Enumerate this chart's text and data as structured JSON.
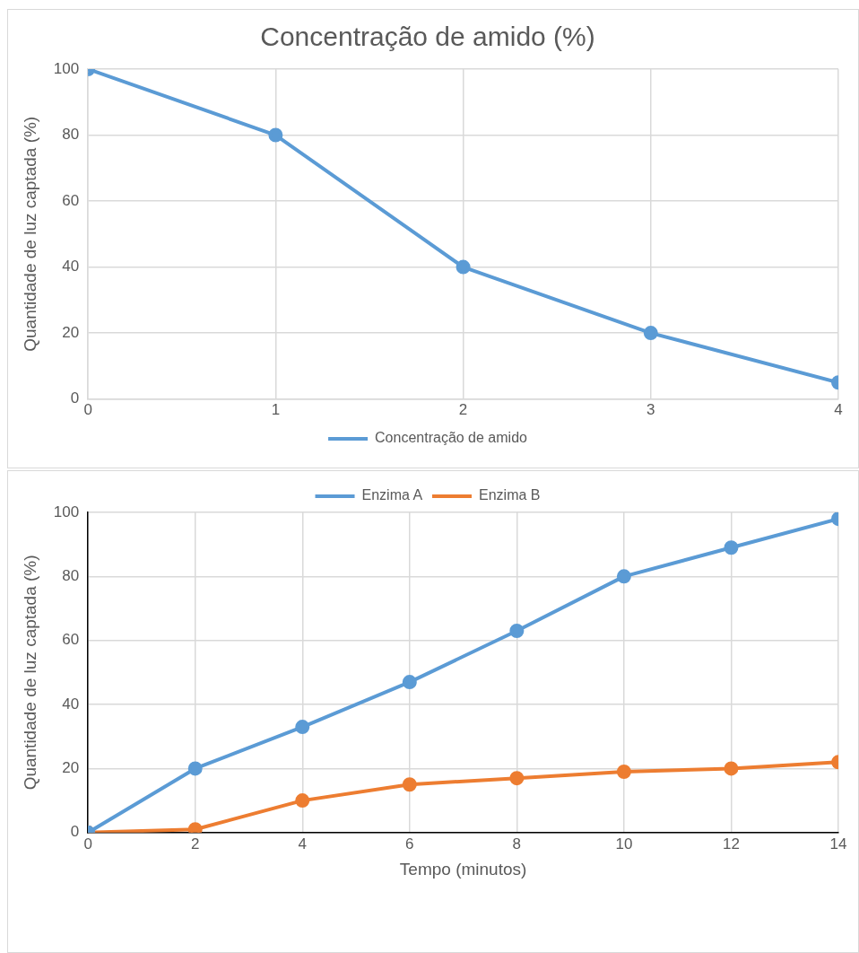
{
  "chart_data": [
    {
      "type": "line",
      "title": "Concentração de amido (%)",
      "ylabel": "Quantidade de luz captada (%)",
      "x": [
        0,
        1,
        2,
        3,
        4
      ],
      "series": [
        {
          "name": "Concentração de amido",
          "color": "#5b9bd5",
          "values": [
            100,
            80,
            40,
            20,
            5
          ]
        }
      ],
      "xlim": [
        0,
        4
      ],
      "xticks": [
        0,
        1,
        2,
        3,
        4
      ],
      "ylim": [
        0,
        100
      ],
      "yticks": [
        0,
        20,
        40,
        60,
        80,
        100
      ],
      "grid": true,
      "legend": "bottom",
      "marker": "circle",
      "line_style": "solid"
    },
    {
      "type": "line",
      "xlabel": "Tempo (minutos)",
      "ylabel": "Quantidade de luz captada (%)",
      "x": [
        0,
        2,
        4,
        6,
        8,
        10,
        12,
        14
      ],
      "series": [
        {
          "name": "Enzima A",
          "color": "#5b9bd5",
          "values": [
            0,
            20,
            33,
            47,
            63,
            80,
            89,
            98
          ]
        },
        {
          "name": "Enzima B",
          "color": "#ed7d31",
          "values": [
            0,
            1,
            10,
            15,
            17,
            19,
            20,
            22
          ]
        }
      ],
      "xlim": [
        0,
        14
      ],
      "xticks": [
        0,
        2,
        4,
        6,
        8,
        10,
        12,
        14
      ],
      "ylim": [
        0,
        100
      ],
      "yticks": [
        0,
        20,
        40,
        60,
        80,
        100
      ],
      "grid": true,
      "legend": "top",
      "marker": "circle",
      "line_style": "solid"
    }
  ]
}
